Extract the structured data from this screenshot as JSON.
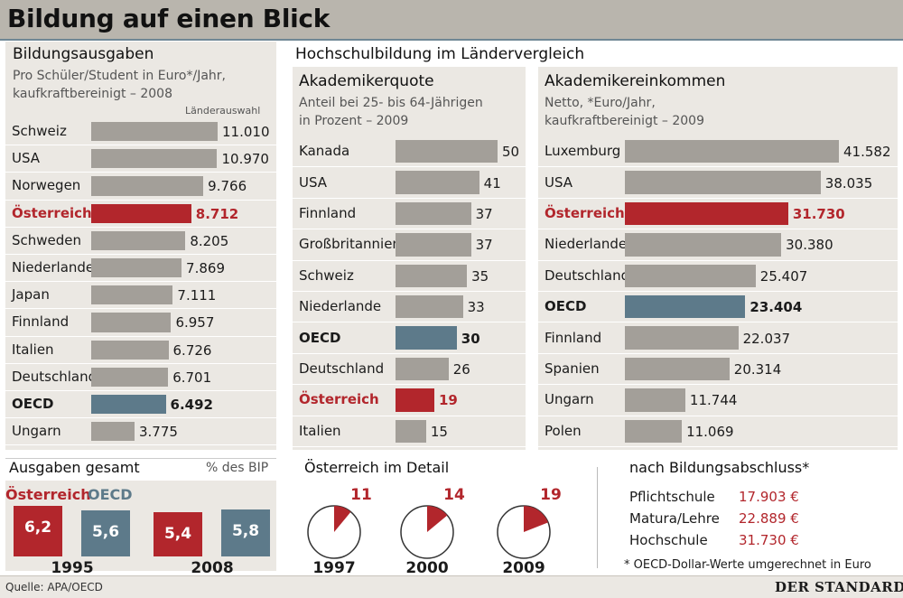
{
  "title": "Bildung auf einen Blick",
  "colors": {
    "grey": "#a39f99",
    "red": "#b2262c",
    "blue": "#5d7a8a"
  },
  "spending": {
    "title": "Bildungsausgaben",
    "subtitle1": "Pro Schüler/Student in Euro*/Jahr,",
    "subtitle2": "kaufkraftbereinigt – 2008",
    "note": "Länderauswahl"
  },
  "higher_ed": {
    "title": "Hochschulbildung im Ländervergleich"
  },
  "quota": {
    "title": "Akademikerquote",
    "subtitle1": "Anteil bei 25- bis 64-Jährigen",
    "subtitle2": "in Prozent – 2009"
  },
  "income": {
    "title": "Akademikereinkommen",
    "subtitle1": "Netto, *Euro/Jahr,",
    "subtitle2": "kaufkraftbereinigt – 2009"
  },
  "totals": {
    "title": "Ausgaben gesamt",
    "unit": "% des BIP",
    "legend_austria": "Österreich",
    "legend_oecd": "OECD"
  },
  "detail": {
    "title": "Österreich im Detail"
  },
  "by_degree": {
    "title": "nach Bildungsabschluss*",
    "rows": [
      {
        "label": "Pflichtschule",
        "value": "17.903 €"
      },
      {
        "label": "Matura/Lehre",
        "value": "22.889 €"
      },
      {
        "label": "Hochschule",
        "value": "31.730 €"
      }
    ],
    "note": "* OECD-Dollar-Werte umgerechnet in Euro"
  },
  "footer": {
    "source": "Quelle: APA/OECD",
    "logo": "DER STANDARD"
  },
  "chart_data": [
    {
      "type": "bar",
      "title": "Bildungsausgaben",
      "categories": [
        "Schweiz",
        "USA",
        "Norwegen",
        "Österreich",
        "Schweden",
        "Niederlande",
        "Japan",
        "Finnland",
        "Italien",
        "Deutschland",
        "OECD",
        "Ungarn"
      ],
      "values": [
        11010,
        10970,
        9766,
        8712,
        8205,
        7869,
        7111,
        6957,
        6726,
        6701,
        6492,
        3775
      ],
      "labels": [
        "11.010",
        "10.970",
        "9.766",
        "8.712",
        "8.205",
        "7.869",
        "7.111",
        "6.957",
        "6.726",
        "6.701",
        "6.492",
        "3.775"
      ],
      "highlight": {
        "Österreich": "red",
        "OECD": "blue"
      }
    },
    {
      "type": "bar",
      "title": "Akademikerquote",
      "categories": [
        "Kanada",
        "USA",
        "Finnland",
        "Großbritannien",
        "Schweiz",
        "Niederlande",
        "OECD",
        "Deutschland",
        "Österreich",
        "Italien"
      ],
      "values": [
        50,
        41,
        37,
        37,
        35,
        33,
        30,
        26,
        19,
        15
      ],
      "labels": [
        "50",
        "41",
        "37",
        "37",
        "35",
        "33",
        "30",
        "26",
        "19",
        "15"
      ],
      "highlight": {
        "Österreich": "red",
        "OECD": "blue"
      }
    },
    {
      "type": "bar",
      "title": "Akademikereinkommen",
      "categories": [
        "Luxemburg",
        "USA",
        "Österreich",
        "Niederlande",
        "Deutschland",
        "OECD",
        "Finnland",
        "Spanien",
        "Ungarn",
        "Polen"
      ],
      "values": [
        41582,
        38035,
        31730,
        30380,
        25407,
        23404,
        22037,
        20314,
        11744,
        11069
      ],
      "labels": [
        "41.582",
        "38.035",
        "31.730",
        "30.380",
        "25.407",
        "23.404",
        "22.037",
        "20.314",
        "11.744",
        "11.069"
      ],
      "highlight": {
        "Österreich": "red",
        "OECD": "blue"
      }
    },
    {
      "type": "bar",
      "title": "Ausgaben gesamt",
      "categories": [
        "1995",
        "2008"
      ],
      "series": [
        {
          "name": "Österreich",
          "values": [
            6.2,
            5.4
          ],
          "labels": [
            "6,2",
            "5,4"
          ]
        },
        {
          "name": "OECD",
          "values": [
            5.6,
            5.8
          ],
          "labels": [
            "5,6",
            "5,8"
          ]
        }
      ]
    },
    {
      "type": "pie",
      "title": "Österreich im Detail",
      "categories": [
        "1997",
        "2000",
        "2009"
      ],
      "values": [
        11,
        14,
        19
      ]
    }
  ]
}
